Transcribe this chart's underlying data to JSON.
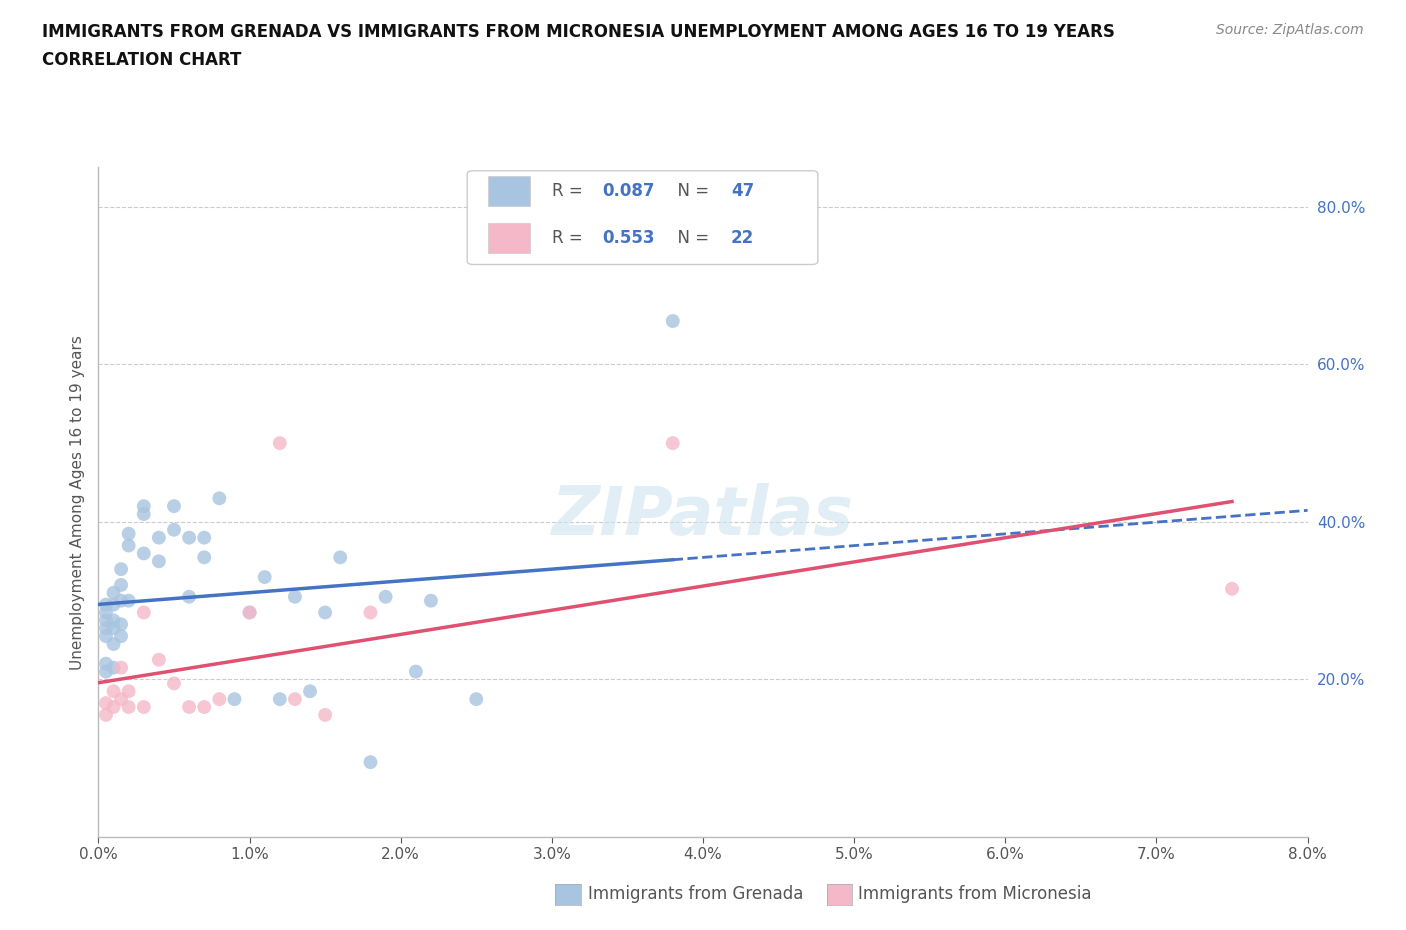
{
  "title_line1": "IMMIGRANTS FROM GRENADA VS IMMIGRANTS FROM MICRONESIA UNEMPLOYMENT AMONG AGES 16 TO 19 YEARS",
  "title_line2": "CORRELATION CHART",
  "source": "Source: ZipAtlas.com",
  "ylabel": "Unemployment Among Ages 16 to 19 years",
  "xlim": [
    0.0,
    0.08
  ],
  "ylim": [
    0.0,
    0.85
  ],
  "xtick_labels": [
    "0.0%",
    "1.0%",
    "2.0%",
    "3.0%",
    "4.0%",
    "5.0%",
    "6.0%",
    "7.0%",
    "8.0%"
  ],
  "xtick_vals": [
    0.0,
    0.01,
    0.02,
    0.03,
    0.04,
    0.05,
    0.06,
    0.07,
    0.08
  ],
  "ytick_labels": [
    "20.0%",
    "40.0%",
    "60.0%",
    "80.0%"
  ],
  "ytick_vals": [
    0.2,
    0.4,
    0.6,
    0.8
  ],
  "grenada_color": "#a8c4e0",
  "micronesia_color": "#f4b8c8",
  "grenada_line_color": "#4472c4",
  "micronesia_line_color": "#e05070",
  "grenada_R": 0.087,
  "grenada_N": 47,
  "micronesia_R": 0.553,
  "micronesia_N": 22,
  "grenada_x": [
    0.0005,
    0.0005,
    0.0005,
    0.0005,
    0.0005,
    0.0005,
    0.0005,
    0.001,
    0.001,
    0.001,
    0.001,
    0.001,
    0.001,
    0.0015,
    0.0015,
    0.0015,
    0.0015,
    0.0015,
    0.002,
    0.002,
    0.002,
    0.003,
    0.003,
    0.003,
    0.004,
    0.004,
    0.005,
    0.005,
    0.006,
    0.006,
    0.007,
    0.007,
    0.008,
    0.009,
    0.01,
    0.011,
    0.012,
    0.013,
    0.014,
    0.015,
    0.016,
    0.018,
    0.019,
    0.021,
    0.022,
    0.025,
    0.038
  ],
  "grenada_y": [
    0.295,
    0.285,
    0.275,
    0.265,
    0.255,
    0.22,
    0.21,
    0.31,
    0.295,
    0.275,
    0.265,
    0.245,
    0.215,
    0.34,
    0.32,
    0.3,
    0.27,
    0.255,
    0.385,
    0.37,
    0.3,
    0.42,
    0.41,
    0.36,
    0.38,
    0.35,
    0.42,
    0.39,
    0.38,
    0.305,
    0.38,
    0.355,
    0.43,
    0.175,
    0.285,
    0.33,
    0.175,
    0.305,
    0.185,
    0.285,
    0.355,
    0.095,
    0.305,
    0.21,
    0.3,
    0.175,
    0.655
  ],
  "micronesia_x": [
    0.0005,
    0.0005,
    0.001,
    0.001,
    0.0015,
    0.0015,
    0.002,
    0.002,
    0.003,
    0.003,
    0.004,
    0.005,
    0.006,
    0.007,
    0.008,
    0.01,
    0.012,
    0.013,
    0.015,
    0.018,
    0.038,
    0.075
  ],
  "micronesia_y": [
    0.155,
    0.17,
    0.165,
    0.185,
    0.175,
    0.215,
    0.165,
    0.185,
    0.165,
    0.285,
    0.225,
    0.195,
    0.165,
    0.165,
    0.175,
    0.285,
    0.5,
    0.175,
    0.155,
    0.285,
    0.5,
    0.315
  ]
}
